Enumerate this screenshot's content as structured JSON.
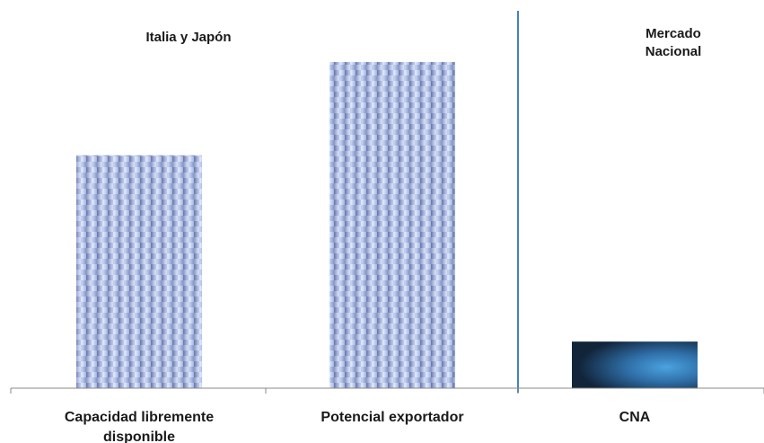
{
  "chart_data": {
    "type": "bar",
    "categories": [
      "Capacidad libremente disponible",
      "Potencial exportador",
      "CNA"
    ],
    "category_lines": [
      [
        "Capacidad libremente",
        "disponible"
      ],
      [
        "Potencial exportador"
      ],
      [
        "CNA"
      ]
    ],
    "values": [
      100,
      140,
      20
    ],
    "groups": [
      {
        "label_lines": [
          "Italia y Japón"
        ],
        "categories": [
          0,
          1
        ]
      },
      {
        "label_lines": [
          "Mercado",
          "Nacional"
        ],
        "categories": [
          2
        ]
      }
    ],
    "title": "",
    "xlabel": "",
    "ylabel": "",
    "ylim": [
      0,
      162
    ],
    "grid": false,
    "legend": "none",
    "colors": {
      "bar_light": "#c8d6f2",
      "bar_mid": "#8fa3d8",
      "bar_dark": "#5c6b9a",
      "cna_dark": "#16334d",
      "cna_light": "#3f8fd0",
      "divider": "#4a7fc1",
      "axis": "#888888"
    }
  }
}
